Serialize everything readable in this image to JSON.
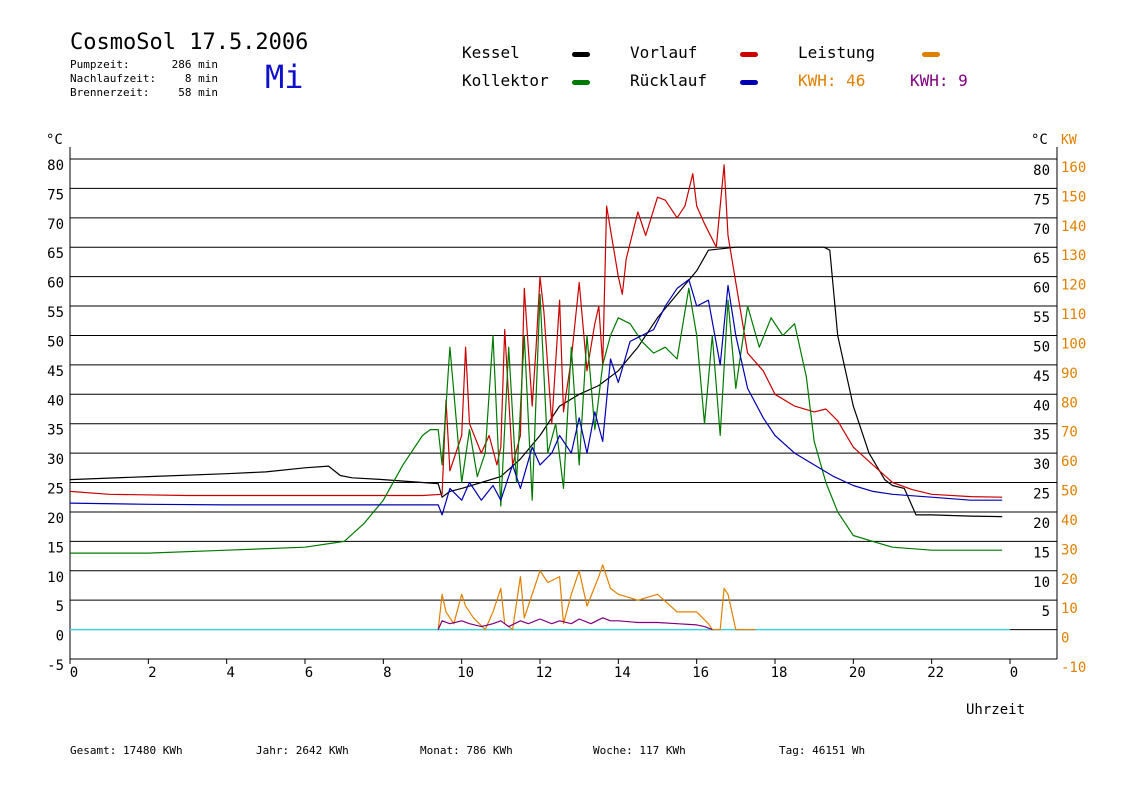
{
  "header": {
    "title": "CosmoSol 17.5.2006",
    "day": "Mi",
    "info": [
      {
        "label": "Pumpzeit:",
        "value": "286 min"
      },
      {
        "label": "Nachlaufzeit:",
        "value": "8 min"
      },
      {
        "label": "Brennerzeit:",
        "value": "58 min"
      }
    ]
  },
  "legend": {
    "kessel": "Kessel",
    "vorlauf": "Vorlauf",
    "leistung": "Leistung",
    "kollektor": "Kollektor",
    "ruecklauf": "Rücklauf",
    "kwh1": "KWH: 46",
    "kwh2": "KWH: 9"
  },
  "colors": {
    "kessel": "#000000",
    "vorlauf": "#cc0000",
    "leistung": "#e08000",
    "kollektor": "#007a00",
    "ruecklauf": "#0000b4",
    "kwh2": "#800080",
    "pump": "#40d0e0"
  },
  "footer": {
    "gesamt": "Gesamt:  17480 KWh",
    "jahr": "Jahr:   2642 KWh",
    "monat": "Monat:    786 KWh",
    "woche": "Woche:    117 KWh",
    "tag": "Tag:  46151 Wh"
  },
  "chart_data": {
    "type": "line",
    "xlabel": "Uhrzeit",
    "ylabel_left": "°C",
    "ylabel_right_c": "°C",
    "ylabel_right_kw": "KW",
    "xlim": [
      0,
      24
    ],
    "ylim": [
      -5,
      80
    ],
    "x_ticks": [
      "0",
      "2",
      "4",
      "6",
      "8",
      "10",
      "12",
      "14",
      "16",
      "18",
      "20",
      "22",
      "0"
    ],
    "y_ticks_left": [
      "-5",
      "0",
      "5",
      "10",
      "15",
      "20",
      "25",
      "30",
      "35",
      "40",
      "45",
      "50",
      "55",
      "60",
      "65",
      "70",
      "75",
      "80"
    ],
    "y_ticks_right_c": [
      {
        "y": 5,
        "label": "5"
      },
      {
        "y": 10,
        "label": "10"
      },
      {
        "y": 15,
        "label": "15"
      },
      {
        "y": 20,
        "label": "20"
      },
      {
        "y": 25,
        "label": "25"
      },
      {
        "y": 30,
        "label": "30"
      },
      {
        "y": 35,
        "label": "35"
      },
      {
        "y": 40,
        "label": "40"
      },
      {
        "y": 45,
        "label": "45"
      },
      {
        "y": 50,
        "label": "50"
      },
      {
        "y": 55,
        "label": "55"
      },
      {
        "y": 60,
        "label": "60"
      },
      {
        "y": 65,
        "label": "65"
      },
      {
        "y": 70,
        "label": "70"
      },
      {
        "y": 75,
        "label": "75"
      },
      {
        "y": 80,
        "label": "80"
      }
    ],
    "y_ticks_right_kw": [
      {
        "y": -5,
        "label": "-10"
      },
      {
        "y": 0,
        "label": "0"
      },
      {
        "y": 5,
        "label": "10"
      },
      {
        "y": 10,
        "label": "20"
      },
      {
        "y": 15,
        "label": "30"
      },
      {
        "y": 20,
        "label": "40"
      },
      {
        "y": 25,
        "label": "50"
      },
      {
        "y": 30,
        "label": "60"
      },
      {
        "y": 35,
        "label": "70"
      },
      {
        "y": 40,
        "label": "80"
      },
      {
        "y": 45,
        "label": "90"
      },
      {
        "y": 50,
        "label": "100"
      },
      {
        "y": 55,
        "label": "110"
      },
      {
        "y": 60,
        "label": "120"
      },
      {
        "y": 65,
        "label": "130"
      },
      {
        "y": 70,
        "label": "140"
      },
      {
        "y": 75,
        "label": "150"
      },
      {
        "y": 80,
        "label": "160"
      }
    ],
    "series": [
      {
        "name": "Kessel",
        "color": "#000000",
        "x": [
          0,
          2,
          4,
          5,
          6,
          6.6,
          6.9,
          7.2,
          8,
          9,
          9.4,
          9.5,
          9.7,
          10,
          10.5,
          11,
          11.5,
          12,
          12.5,
          13,
          13.5,
          14,
          14.5,
          15,
          15.5,
          16,
          16.3,
          17,
          18,
          19,
          19.25,
          19.4,
          19.6,
          20,
          20.4,
          20.8,
          21,
          21.3,
          21.6,
          22,
          23,
          23.8
        ],
        "y": [
          25.5,
          26,
          26.5,
          26.8,
          27.5,
          27.8,
          26.2,
          25.8,
          25.5,
          25,
          24.8,
          22.5,
          23.5,
          24,
          25,
          26,
          29,
          33,
          38,
          40,
          41.5,
          44,
          48,
          53,
          57,
          61,
          64.5,
          65,
          65,
          65,
          65,
          64.5,
          50,
          38,
          30,
          25.5,
          24.5,
          24,
          19.5,
          19.5,
          19.3,
          19.2
        ]
      },
      {
        "name": "Vorlauf",
        "color": "#cc0000",
        "x": [
          0,
          1,
          3,
          6,
          9,
          9.5,
          9.6,
          9.7,
          10,
          10.1,
          10.2,
          10.5,
          10.7,
          10.9,
          11,
          11.1,
          11.3,
          11.5,
          11.6,
          11.8,
          11.9,
          12,
          12.1,
          12.3,
          12.5,
          12.6,
          12.8,
          13,
          13.2,
          13.4,
          13.5,
          13.6,
          13.7,
          14,
          14.1,
          14.2,
          14.5,
          14.7,
          15,
          15.2,
          15.5,
          15.7,
          15.9,
          16,
          16.2,
          16.5,
          16.7,
          16.8,
          17,
          17.3,
          17.7,
          18,
          18.5,
          19,
          19.3,
          19.6,
          20,
          20.5,
          21,
          21.5,
          22,
          23,
          23.8
        ],
        "y": [
          23.5,
          23,
          22.8,
          22.8,
          22.8,
          23,
          39,
          27,
          33,
          48,
          35,
          30,
          33,
          28,
          31,
          51,
          28,
          33,
          58,
          38,
          48,
          60,
          54,
          35,
          56,
          37,
          46,
          59,
          44,
          52,
          55,
          45,
          72,
          60,
          57,
          63,
          71,
          67,
          73.5,
          73,
          70,
          72,
          77.5,
          72,
          69,
          65,
          79,
          67,
          59,
          47,
          44,
          40,
          38,
          37,
          37.5,
          35.5,
          31,
          28,
          25,
          23.8,
          23,
          22.6,
          22.5
        ]
      },
      {
        "name": "Kollektor",
        "color": "#007a00",
        "x": [
          0,
          2,
          4,
          6,
          7,
          7.5,
          8,
          8.5,
          9,
          9.2,
          9.4,
          9.5,
          9.7,
          10,
          10.2,
          10.4,
          10.6,
          10.8,
          11,
          11.2,
          11.4,
          11.6,
          11.8,
          12,
          12.2,
          12.4,
          12.6,
          12.8,
          13,
          13.2,
          13.4,
          13.6,
          13.8,
          14,
          14.3,
          14.6,
          14.9,
          15.2,
          15.5,
          15.8,
          16,
          16.2,
          16.4,
          16.6,
          16.8,
          17,
          17.3,
          17.6,
          17.9,
          18.2,
          18.5,
          18.8,
          19,
          19.3,
          19.6,
          20,
          20.5,
          21,
          22,
          23,
          23.8
        ],
        "y": [
          13,
          13,
          13.5,
          14,
          15,
          18,
          22,
          28,
          33,
          34,
          34,
          28,
          48,
          25,
          34,
          26,
          30,
          50,
          21,
          48,
          25,
          50,
          22,
          57,
          30,
          35,
          24,
          48,
          28,
          50,
          34,
          45,
          50,
          53,
          52,
          49,
          47,
          48,
          46,
          58,
          50,
          35,
          50,
          33,
          56,
          41,
          55,
          48,
          53,
          50,
          52,
          43,
          32,
          25,
          20,
          16,
          15,
          14,
          13.5,
          13.5,
          13.5
        ]
      },
      {
        "name": "Rücklauf",
        "color": "#0000b4",
        "x": [
          0,
          2,
          4,
          6,
          8,
          9,
          9.4,
          9.5,
          9.7,
          10,
          10.2,
          10.5,
          10.8,
          11,
          11.3,
          11.5,
          11.8,
          12,
          12.3,
          12.5,
          12.8,
          13,
          13.2,
          13.4,
          13.6,
          13.8,
          14,
          14.3,
          14.6,
          14.9,
          15.2,
          15.5,
          15.8,
          16,
          16.3,
          16.6,
          16.8,
          17,
          17.3,
          17.7,
          18,
          18.5,
          19,
          19.5,
          20,
          20.5,
          21,
          22,
          23,
          23.8
        ],
        "y": [
          21.5,
          21.3,
          21.2,
          21.2,
          21.2,
          21.2,
          21.2,
          19.5,
          24,
          22,
          25,
          22,
          24.5,
          22,
          28,
          24,
          31,
          28,
          30,
          33,
          30,
          36,
          30,
          37,
          32,
          46,
          42,
          49,
          50,
          51,
          55,
          58,
          59.5,
          55,
          56,
          45,
          58.5,
          50,
          41,
          36,
          33,
          30,
          28,
          26,
          24.5,
          23.5,
          23,
          22.5,
          22,
          22
        ]
      },
      {
        "name": "Leistung",
        "color": "#e08000",
        "x": [
          9.4,
          9.5,
          9.6,
          9.8,
          10,
          10.1,
          10.3,
          10.6,
          10.8,
          11,
          11.1,
          11.3,
          11.5,
          11.6,
          11.8,
          12,
          12.2,
          12.5,
          12.6,
          12.8,
          13,
          13.2,
          13.5,
          13.6,
          13.8,
          14,
          14.5,
          15,
          15.5,
          16,
          16.3,
          16.4,
          16.6,
          16.7,
          16.8,
          17,
          17.2,
          17.5
        ],
        "y": [
          0,
          6,
          3,
          1,
          6,
          4,
          2,
          0,
          3,
          7,
          1,
          0,
          9,
          2,
          6,
          10,
          8,
          9,
          1,
          6,
          10,
          4,
          9,
          11,
          7,
          6,
          5,
          6,
          3,
          3,
          1,
          0,
          0,
          7,
          6,
          0,
          0,
          0
        ]
      },
      {
        "name": "KWH",
        "color": "#800080",
        "x": [
          9.4,
          9.5,
          9.7,
          10,
          10.2,
          10.5,
          10.8,
          11,
          11.2,
          11.5,
          11.7,
          12,
          12.3,
          12.5,
          12.8,
          13,
          13.3,
          13.6,
          13.8,
          14,
          14.5,
          15,
          15.5,
          16,
          16.2,
          16.4
        ],
        "y": [
          0,
          1.5,
          1,
          1.5,
          1,
          0.5,
          1,
          1.5,
          0.5,
          1.5,
          1,
          1.8,
          1,
          1.5,
          1,
          1.8,
          1,
          2,
          1.5,
          1.5,
          1.2,
          1.2,
          1,
          0.8,
          0.5,
          0
        ]
      }
    ]
  }
}
